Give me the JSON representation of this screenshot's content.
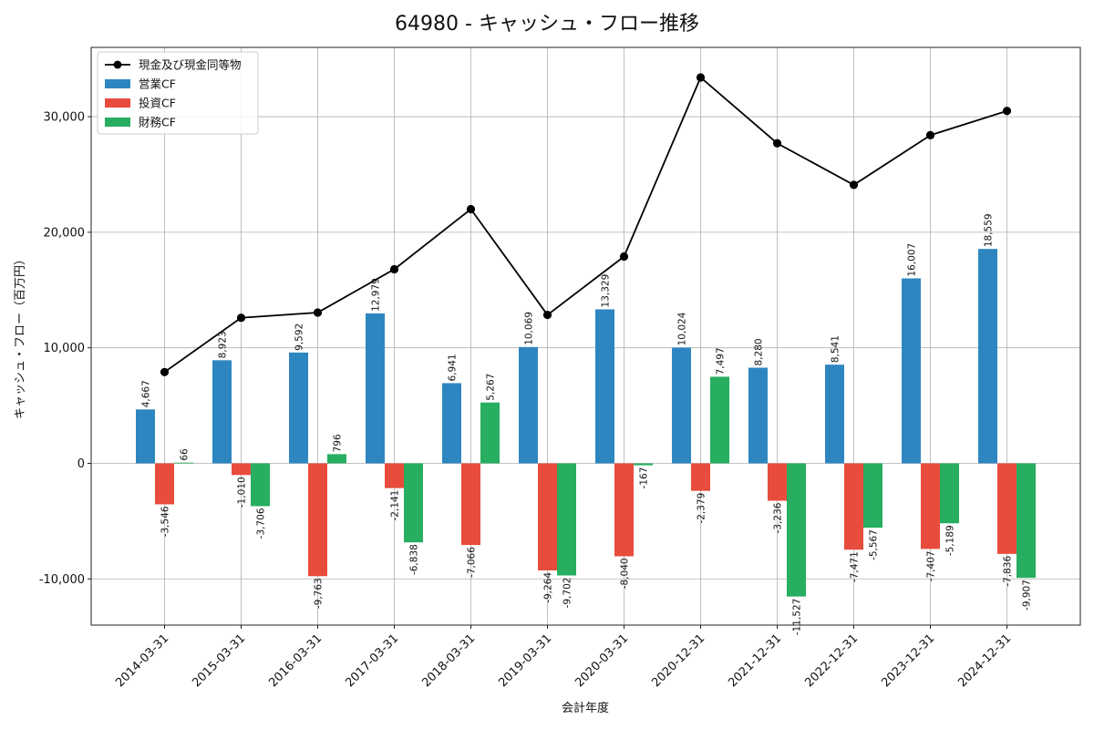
{
  "chart_data": {
    "type": "bar",
    "title": "64980 - キャッシュ・フロー推移",
    "xlabel": "会計年度",
    "ylabel": "キャッシュ・フロー（百万円）",
    "ylim": [
      -14000,
      36000
    ],
    "grid": true,
    "legend_position": "top-left",
    "yticks": [
      -10000,
      0,
      10000,
      20000,
      30000
    ],
    "ytick_labels": [
      "-10,000",
      "0",
      "10,000",
      "20,000",
      "30,000"
    ],
    "categories": [
      "2014-03-31",
      "2015-03-31",
      "2016-03-31",
      "2017-03-31",
      "2018-03-31",
      "2019-03-31",
      "2020-03-31",
      "2020-12-31",
      "2021-12-31",
      "2022-12-31",
      "2023-12-31",
      "2024-12-31"
    ],
    "series": [
      {
        "name": "営業CF",
        "kind": "bar",
        "color": "#2e86c1",
        "values": [
          4667,
          8923,
          9592,
          12979,
          6941,
          10069,
          13329,
          10024,
          8280,
          8541,
          16007,
          18559
        ],
        "labels": [
          "4,667",
          "8,923",
          "9,592",
          "12,979",
          "6,941",
          "10,069",
          "13,329",
          "10,024",
          "8,280",
          "8,541",
          "16,007",
          "18,559"
        ]
      },
      {
        "name": "投資CF",
        "kind": "bar",
        "color": "#e74c3c",
        "values": [
          -3546,
          -1010,
          -9763,
          -2141,
          -7066,
          -9264,
          -8040,
          -2379,
          -3236,
          -7471,
          -7407,
          -7836
        ],
        "labels": [
          "-3,546",
          "-1,010",
          "-9,763",
          "-2,141",
          "-7,066",
          "-9,264",
          "-8,040",
          "-2,379",
          "-3,236",
          "-7,471",
          "-7,407",
          "-7,836"
        ]
      },
      {
        "name": "財務CF",
        "kind": "bar",
        "color": "#27ae60",
        "values": [
          66,
          -3706,
          796,
          -6838,
          5267,
          -9702,
          -167,
          7497,
          -11527,
          -5567,
          -5189,
          -9907
        ],
        "labels": [
          "66",
          "-3,706",
          "796",
          "-6,838",
          "5,267",
          "-9,702",
          "-167",
          "7,497",
          "-11,527",
          "-5,567",
          "-5,189",
          "-9,907"
        ]
      },
      {
        "name": "現金及び現金同等物",
        "kind": "line",
        "color": "#000000",
        "values": [
          7900,
          12600,
          13050,
          16800,
          22000,
          12850,
          17900,
          33400,
          27700,
          24100,
          28400,
          30500
        ]
      }
    ]
  }
}
